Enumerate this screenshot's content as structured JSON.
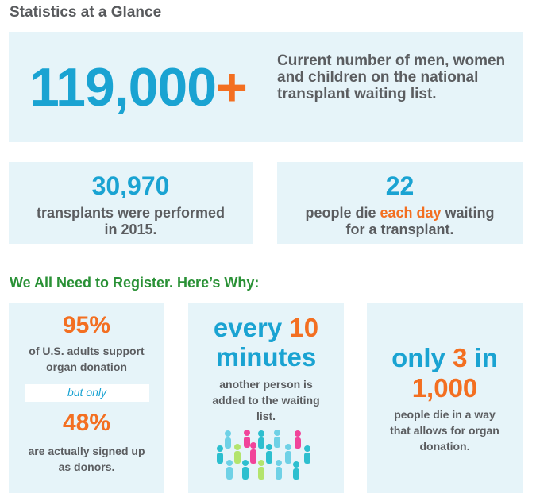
{
  "title": "Statistics at a Glance",
  "main": {
    "number": "119,000",
    "plus": "+",
    "description": "Current number of men, women and children on the national transplant waiting list."
  },
  "transplants": {
    "number": "30,970",
    "line1": "transplants were performed",
    "line2": "in 2015."
  },
  "deaths": {
    "number": "22",
    "before": "people die ",
    "highlight": "each day",
    "after": " waiting",
    "line2": "for a transplant."
  },
  "why_title": "We All Need to Register. Here’s Why:",
  "support": {
    "pct1": "95%",
    "line1": "of U.S. adults support",
    "line2": "organ donation",
    "but_only": "but only",
    "pct2": "48%",
    "line3": "are actually signed up",
    "line4": "as donors."
  },
  "minutes": {
    "word1": "every",
    "num": "10",
    "word2": "minutes",
    "line1": "another person is",
    "line2": "added to the waiting",
    "line3": "list."
  },
  "ratio": {
    "word1": "only",
    "num": "3",
    "word2": "in",
    "num2": "1,000",
    "line1": "people die in a way",
    "line2": "that allows for organ",
    "line3": "donation."
  },
  "colors": {
    "blue": "#1aa3d2",
    "orange": "#f36f21",
    "green": "#2a9136",
    "panel": "#e6f4f9"
  }
}
